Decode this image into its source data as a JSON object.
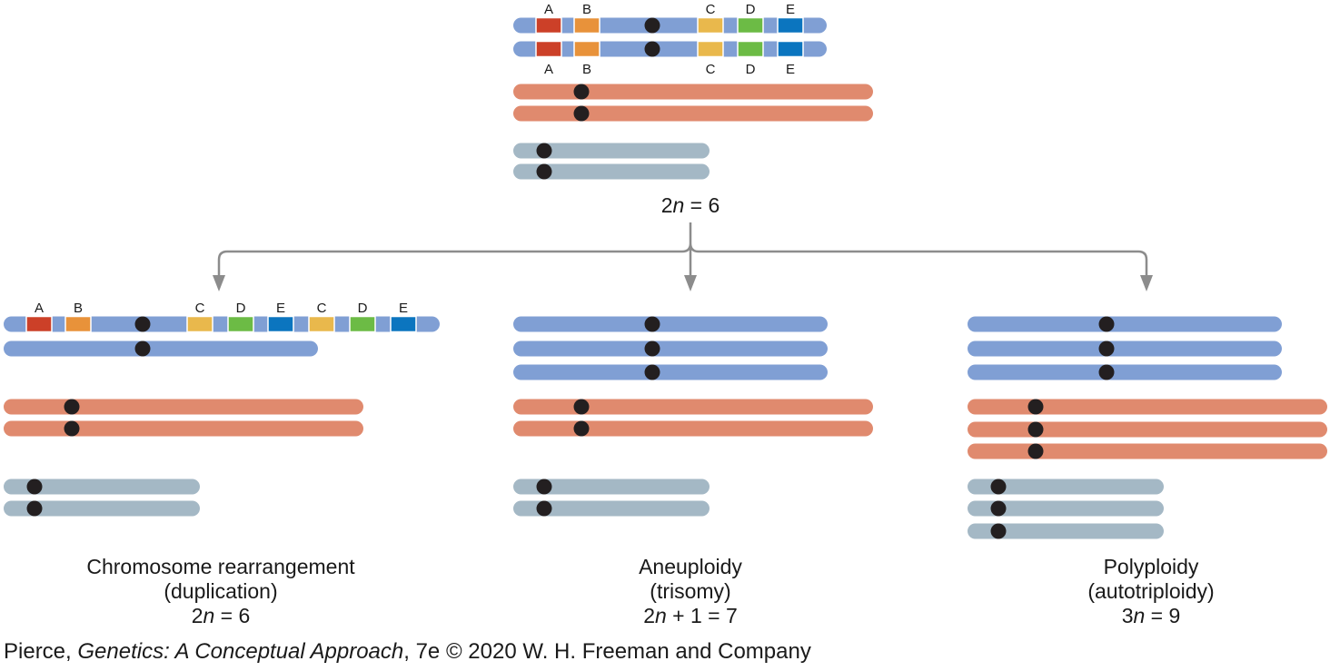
{
  "colors": {
    "long_chromosome": "#809fd4",
    "medium_chromosome": "#e08a6e",
    "short_chromosome": "#a4b8c5",
    "centromere": "#231f20",
    "gene_A": "#cc4028",
    "gene_B": "#e8923a",
    "gene_C": "#e9b84c",
    "gene_D": "#6cbb45",
    "gene_E": "#0b75bf",
    "arrow": "#8c8c8c"
  },
  "gene_labels": [
    "A",
    "B",
    "C",
    "D",
    "E"
  ],
  "original": {
    "ploidy": {
      "lead": "2",
      "var": "n",
      "rest": " = 6"
    }
  },
  "panels": [
    {
      "id": "rearrangement",
      "title": "Chromosome rearrangement",
      "subtitle": "(duplication)",
      "ploidy": {
        "lead": "2",
        "var": "n",
        "rest": " = 6"
      },
      "counts": {
        "long": 2,
        "medium": 2,
        "short": 2
      }
    },
    {
      "id": "aneuploidy",
      "title": "Aneuploidy",
      "subtitle": "(trisomy)",
      "ploidy": {
        "lead": "2",
        "var": "n",
        "rest": " + 1 = 7"
      },
      "counts": {
        "long": 3,
        "medium": 2,
        "short": 2
      }
    },
    {
      "id": "polyploidy",
      "title": "Polyploidy",
      "subtitle": "(autotriploidy)",
      "ploidy": {
        "lead": "3",
        "var": "n",
        "rest": " = 9"
      },
      "counts": {
        "long": 3,
        "medium": 3,
        "short": 3
      }
    }
  ],
  "credit": {
    "author": "Pierce, ",
    "book": "Genetics: A Conceptual Approach",
    "rest": ", 7e © 2020 W. H. Freeman and Company"
  }
}
